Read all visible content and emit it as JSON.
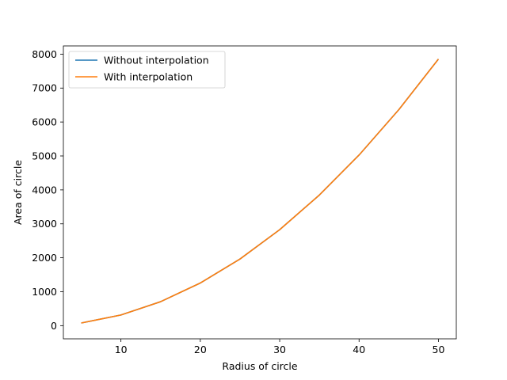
{
  "chart_data": {
    "type": "line",
    "xlabel": "Radius of circle",
    "ylabel": "Area of circle",
    "xlim": [
      2.75,
      52.25
    ],
    "ylim": [
      -388,
      8242
    ],
    "xticks": [
      10,
      20,
      30,
      40,
      50
    ],
    "yticks": [
      0,
      1000,
      2000,
      3000,
      4000,
      5000,
      6000,
      7000,
      8000
    ],
    "grid": false,
    "legend_position": "top-left",
    "series": [
      {
        "name": "Without interpolation",
        "color": "#1f77b4",
        "x": [
          5,
          10,
          15,
          20,
          25,
          30,
          35,
          40,
          45,
          50
        ],
        "y": [
          78.5,
          314.2,
          706.9,
          1256.6,
          1963.5,
          2827.4,
          3848.5,
          5026.5,
          6361.7,
          7854.0
        ]
      },
      {
        "name": "With interpolation",
        "color": "#ff7f0e",
        "x": [
          5,
          7.5,
          10,
          12.5,
          15,
          17.5,
          20,
          22.5,
          25,
          27.5,
          30,
          32.5,
          35,
          37.5,
          40,
          42.5,
          45,
          47.5,
          50
        ],
        "y": [
          78.5,
          196.3,
          314.2,
          510.5,
          706.9,
          981.7,
          1256.6,
          1610.0,
          1963.5,
          2395.5,
          2827.4,
          3338.0,
          3848.5,
          4437.5,
          5026.5,
          5694.1,
          6361.7,
          7107.8,
          7854.0
        ]
      }
    ]
  }
}
